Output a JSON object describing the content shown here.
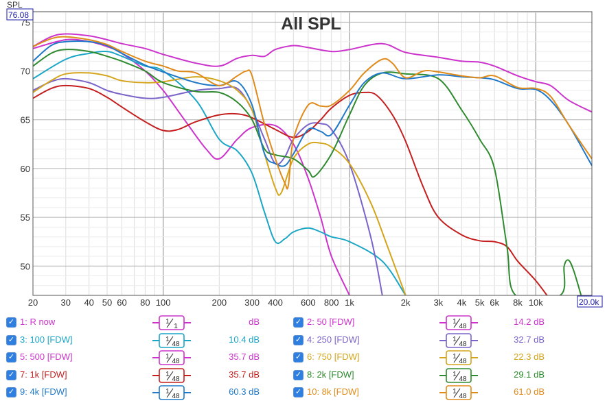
{
  "chart_data": {
    "type": "line",
    "title": "All SPL",
    "ylabel": "SPL",
    "y_top_value": "76.08",
    "x_end_label": "20.0k",
    "x_scale": "log",
    "xlim": [
      20,
      20000
    ],
    "ylim": [
      47,
      76.08
    ],
    "grid": true,
    "x_tick_labels": [
      {
        "v": 20,
        "t": "20"
      },
      {
        "v": 30,
        "t": "30"
      },
      {
        "v": 40,
        "t": "40"
      },
      {
        "v": 50,
        "t": "50"
      },
      {
        "v": 60,
        "t": "60"
      },
      {
        "v": 80,
        "t": "80"
      },
      {
        "v": 100,
        "t": "100"
      },
      {
        "v": 200,
        "t": "200"
      },
      {
        "v": 300,
        "t": "300"
      },
      {
        "v": 400,
        "t": "400"
      },
      {
        "v": 600,
        "t": "600"
      },
      {
        "v": 800,
        "t": "800"
      },
      {
        "v": 1000,
        "t": "1k"
      },
      {
        "v": 2000,
        "t": "2k"
      },
      {
        "v": 3000,
        "t": "3k"
      },
      {
        "v": 4000,
        "t": "4k"
      },
      {
        "v": 5000,
        "t": "5k"
      },
      {
        "v": 6000,
        "t": "6k"
      },
      {
        "v": 8000,
        "t": "8k"
      },
      {
        "v": 10000,
        "t": "10k"
      }
    ],
    "y_ticks": [
      50,
      55,
      60,
      65,
      70,
      75
    ],
    "series": [
      {
        "name": "1: R now",
        "color": "#cc33cc",
        "smoothing": "1/1",
        "offset": "dB",
        "points": [
          [
            20,
            72.5
          ],
          [
            25,
            73.5
          ],
          [
            30,
            73.8
          ],
          [
            40,
            73.6
          ],
          [
            50,
            73.2
          ],
          [
            60,
            72.8
          ],
          [
            80,
            72.3
          ],
          [
            100,
            71.7
          ],
          [
            150,
            70.8
          ],
          [
            200,
            70.5
          ],
          [
            250,
            71.3
          ],
          [
            300,
            71.6
          ],
          [
            350,
            71.5
          ],
          [
            400,
            72.2
          ],
          [
            500,
            72.6
          ],
          [
            600,
            72.4
          ],
          [
            800,
            72.0
          ],
          [
            1000,
            72.2
          ],
          [
            1500,
            72.8
          ],
          [
            2000,
            71.9
          ],
          [
            3000,
            71.4
          ],
          [
            4000,
            71.0
          ],
          [
            5000,
            70.9
          ],
          [
            6000,
            70.5
          ],
          [
            8000,
            69.5
          ],
          [
            10000,
            68.9
          ],
          [
            12000,
            68.5
          ],
          [
            15000,
            67.0
          ],
          [
            20000,
            65.8
          ]
        ]
      },
      {
        "name": "2: 50 [FDW]",
        "color": "#cc33cc",
        "smoothing": "1/48",
        "offset": "14.2 dB",
        "points": [
          [
            20,
            72.3
          ],
          [
            30,
            73.2
          ],
          [
            40,
            73.0
          ],
          [
            50,
            72.5
          ],
          [
            60,
            71.8
          ],
          [
            80,
            70.0
          ],
          [
            100,
            68.0
          ],
          [
            130,
            65.0
          ],
          [
            170,
            62.0
          ],
          [
            200,
            61.0
          ],
          [
            250,
            63.0
          ],
          [
            300,
            64.2
          ],
          [
            400,
            64.4
          ],
          [
            500,
            62.5
          ],
          [
            600,
            59.0
          ],
          [
            700,
            55.0
          ],
          [
            800,
            51.0
          ],
          [
            1000,
            47.0
          ]
        ]
      },
      {
        "name": "3: 100 [FDW]",
        "color": "#1aa6c6",
        "smoothing": "1/48",
        "offset": "10.4 dB",
        "points": [
          [
            20,
            69.2
          ],
          [
            30,
            71.2
          ],
          [
            40,
            71.8
          ],
          [
            50,
            72.0
          ],
          [
            60,
            71.5
          ],
          [
            80,
            70.5
          ],
          [
            100,
            70.0
          ],
          [
            150,
            67.0
          ],
          [
            200,
            63.0
          ],
          [
            250,
            61.8
          ],
          [
            300,
            59.5
          ],
          [
            350,
            55.5
          ],
          [
            400,
            52.5
          ],
          [
            450,
            52.8
          ],
          [
            500,
            53.5
          ],
          [
            600,
            53.9
          ],
          [
            700,
            53.5
          ],
          [
            800,
            53.0
          ],
          [
            1000,
            52.5
          ],
          [
            1500,
            50.5
          ],
          [
            2000,
            47.0
          ]
        ]
      },
      {
        "name": "4: 250 [FDW]",
        "color": "#7a63c9",
        "smoothing": "1/48",
        "offset": "32.7 dB",
        "points": [
          [
            20,
            68.0
          ],
          [
            25,
            68.9
          ],
          [
            30,
            69.2
          ],
          [
            40,
            68.8
          ],
          [
            50,
            68.0
          ],
          [
            60,
            67.6
          ],
          [
            80,
            67.2
          ],
          [
            100,
            67.3
          ],
          [
            150,
            68.0
          ],
          [
            200,
            68.2
          ],
          [
            250,
            68.2
          ],
          [
            300,
            66.0
          ],
          [
            350,
            63.0
          ],
          [
            400,
            60.5
          ],
          [
            450,
            61.2
          ],
          [
            500,
            63.0
          ],
          [
            600,
            64.5
          ],
          [
            700,
            64.6
          ],
          [
            800,
            64.0
          ],
          [
            1000,
            60.5
          ],
          [
            1300,
            53.0
          ],
          [
            1500,
            47.0
          ]
        ]
      },
      {
        "name": "5: 500 [FDW]",
        "color": "#cc33cc",
        "smoothing": "1/48",
        "offset": "35.7 dB",
        "points": []
      },
      {
        "name": "6: 750 [FDW]",
        "color": "#d4a51a",
        "smoothing": "1/48",
        "offset": "22.3 dB",
        "points": [
          [
            20,
            67.8
          ],
          [
            25,
            69.0
          ],
          [
            30,
            69.7
          ],
          [
            40,
            69.8
          ],
          [
            50,
            69.5
          ],
          [
            60,
            69.0
          ],
          [
            80,
            68.8
          ],
          [
            100,
            68.9
          ],
          [
            150,
            69.4
          ],
          [
            200,
            69.0
          ],
          [
            250,
            68.0
          ],
          [
            300,
            66.0
          ],
          [
            350,
            61.5
          ],
          [
            400,
            58.0
          ],
          [
            430,
            57.5
          ],
          [
            500,
            61.0
          ],
          [
            600,
            62.5
          ],
          [
            700,
            62.6
          ],
          [
            800,
            62.2
          ],
          [
            1000,
            60.5
          ],
          [
            1300,
            56.5
          ],
          [
            1600,
            52.0
          ],
          [
            2000,
            47.0
          ]
        ]
      },
      {
        "name": "7: 1k [FDW]",
        "color": "#c41e1e",
        "smoothing": "1/48",
        "offset": "35.7 dB",
        "points": [
          [
            20,
            67.2
          ],
          [
            25,
            68.2
          ],
          [
            30,
            68.5
          ],
          [
            40,
            68.2
          ],
          [
            50,
            67.3
          ],
          [
            60,
            66.3
          ],
          [
            80,
            64.8
          ],
          [
            100,
            63.9
          ],
          [
            120,
            64.0
          ],
          [
            150,
            64.8
          ],
          [
            200,
            65.5
          ],
          [
            250,
            65.6
          ],
          [
            300,
            65.2
          ],
          [
            400,
            64.0
          ],
          [
            500,
            63.2
          ],
          [
            600,
            63.8
          ],
          [
            700,
            65.0
          ],
          [
            800,
            66.2
          ],
          [
            1000,
            67.5
          ],
          [
            1200,
            67.8
          ],
          [
            1400,
            67.5
          ],
          [
            1700,
            65.5
          ],
          [
            2000,
            62.8
          ],
          [
            2500,
            58.0
          ],
          [
            3000,
            55.0
          ],
          [
            4000,
            53.2
          ],
          [
            5000,
            52.6
          ],
          [
            6000,
            52.5
          ],
          [
            7000,
            52.0
          ],
          [
            8000,
            50.5
          ],
          [
            10000,
            48.5
          ],
          [
            12000,
            46.5
          ]
        ]
      },
      {
        "name": "8: 2k [FDW]",
        "color": "#2e8a2e",
        "smoothing": "1/48",
        "offset": "29.1 dB",
        "points": [
          [
            20,
            70.5
          ],
          [
            25,
            71.8
          ],
          [
            30,
            72.2
          ],
          [
            40,
            72.0
          ],
          [
            50,
            71.5
          ],
          [
            60,
            71.0
          ],
          [
            80,
            70.0
          ],
          [
            100,
            68.8
          ],
          [
            150,
            67.9
          ],
          [
            200,
            67.8
          ],
          [
            250,
            66.8
          ],
          [
            300,
            65.0
          ],
          [
            350,
            62.0
          ],
          [
            400,
            61.4
          ],
          [
            500,
            61.0
          ],
          [
            600,
            59.8
          ],
          [
            650,
            59.2
          ],
          [
            800,
            61.5
          ],
          [
            1000,
            65.5
          ],
          [
            1200,
            68.5
          ],
          [
            1500,
            69.8
          ],
          [
            2000,
            69.7
          ],
          [
            3000,
            69.2
          ],
          [
            4000,
            66.0
          ],
          [
            5000,
            63.0
          ],
          [
            6000,
            60.0
          ],
          [
            7000,
            52.0
          ],
          [
            7800,
            47.0
          ],
          [
            13500,
            47.0
          ],
          [
            14200,
            50.0
          ],
          [
            15000,
            50.6
          ],
          [
            16000,
            49.5
          ],
          [
            17500,
            47.0
          ]
        ]
      },
      {
        "name": "9: 4k [FDW]",
        "color": "#1f78c8",
        "smoothing": "1/48",
        "offset": "60.3 dB",
        "points": [
          [
            20,
            71.0
          ],
          [
            25,
            72.6
          ],
          [
            30,
            73.0
          ],
          [
            40,
            73.0
          ],
          [
            50,
            72.6
          ],
          [
            60,
            71.8
          ],
          [
            80,
            70.6
          ],
          [
            100,
            69.9
          ],
          [
            150,
            68.8
          ],
          [
            200,
            68.5
          ],
          [
            250,
            68.9
          ],
          [
            300,
            66.5
          ],
          [
            350,
            61.5
          ],
          [
            400,
            60.5
          ],
          [
            450,
            60.3
          ],
          [
            500,
            61.5
          ],
          [
            600,
            64.0
          ],
          [
            700,
            63.8
          ],
          [
            800,
            63.5
          ],
          [
            1000,
            66.5
          ],
          [
            1200,
            68.8
          ],
          [
            1500,
            69.8
          ],
          [
            2000,
            69.2
          ],
          [
            3000,
            69.6
          ],
          [
            4000,
            69.4
          ],
          [
            5000,
            69.3
          ],
          [
            6000,
            69.1
          ],
          [
            8000,
            68.2
          ],
          [
            10000,
            68.1
          ],
          [
            12000,
            67.0
          ],
          [
            15000,
            64.5
          ],
          [
            20000,
            60.3
          ]
        ]
      },
      {
        "name": "10: 8k [FDW]",
        "color": "#e08a1a",
        "smoothing": "1/48",
        "offset": "61.0 dB",
        "points": [
          [
            20,
            72.5
          ],
          [
            25,
            73.3
          ],
          [
            30,
            73.5
          ],
          [
            40,
            73.2
          ],
          [
            50,
            72.7
          ],
          [
            60,
            72.0
          ],
          [
            80,
            71.0
          ],
          [
            100,
            70.5
          ],
          [
            120,
            70.0
          ],
          [
            150,
            69.8
          ],
          [
            200,
            68.5
          ],
          [
            250,
            69.5
          ],
          [
            280,
            70.0
          ],
          [
            300,
            69.5
          ],
          [
            350,
            64.5
          ],
          [
            400,
            61.0
          ],
          [
            450,
            58.5
          ],
          [
            470,
            58.3
          ],
          [
            500,
            63.0
          ],
          [
            600,
            66.5
          ],
          [
            700,
            66.4
          ],
          [
            800,
            66.5
          ],
          [
            1000,
            68.0
          ],
          [
            1200,
            69.8
          ],
          [
            1500,
            71.2
          ],
          [
            1700,
            70.8
          ],
          [
            2000,
            69.3
          ],
          [
            2500,
            70.0
          ],
          [
            3000,
            69.9
          ],
          [
            4000,
            69.5
          ],
          [
            5000,
            69.3
          ],
          [
            6000,
            69.5
          ],
          [
            8000,
            68.3
          ],
          [
            10000,
            68.2
          ],
          [
            12000,
            67.4
          ],
          [
            15000,
            64.5
          ],
          [
            20000,
            61.0
          ]
        ]
      }
    ]
  },
  "legend": {
    "rows": [
      [
        {
          "idx": 0,
          "check": "✓"
        },
        {
          "idx": 1,
          "check": "✓"
        }
      ],
      [
        {
          "idx": 2,
          "check": "✓"
        },
        {
          "idx": 3,
          "check": "✓"
        }
      ],
      [
        {
          "idx": 4,
          "check": "✓"
        },
        {
          "idx": 5,
          "check": "✓"
        }
      ],
      [
        {
          "idx": 6,
          "check": "✓"
        },
        {
          "idx": 7,
          "check": "✓"
        }
      ],
      [
        {
          "idx": 8,
          "check": "✓"
        },
        {
          "idx": 9,
          "check": "✓"
        }
      ]
    ]
  }
}
